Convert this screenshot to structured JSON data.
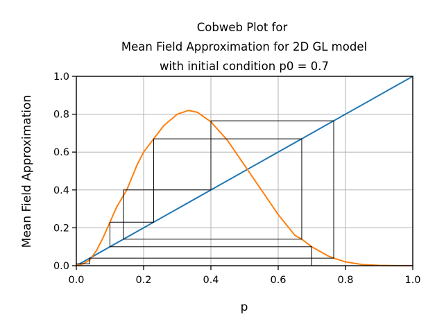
{
  "chart_data": {
    "type": "line",
    "title_lines": [
      "Cobweb Plot for",
      "Mean Field Approximation for 2D GL model",
      "with initial condition p0 = 0.7"
    ],
    "xlabel": "p",
    "ylabel": "Mean Field Approximation",
    "xlim": [
      0.0,
      1.0
    ],
    "ylim": [
      0.0,
      1.0
    ],
    "xticks": [
      "0.0",
      "0.2",
      "0.4",
      "0.6",
      "0.8",
      "1.0"
    ],
    "yticks": [
      "0.0",
      "0.2",
      "0.4",
      "0.6",
      "0.8",
      "1.0"
    ],
    "grid": true,
    "series": [
      {
        "color": "#1f77b4",
        "x": [
          0.0,
          1.0
        ],
        "y": [
          0.0,
          1.0
        ]
      },
      {
        "color": "#ff7f0e",
        "x": [
          0.0,
          0.02,
          0.04,
          0.06,
          0.08,
          0.1,
          0.12,
          0.15,
          0.18,
          0.2,
          0.23,
          0.26,
          0.3,
          0.333,
          0.36,
          0.4,
          0.45,
          0.5,
          0.55,
          0.6,
          0.65,
          0.67,
          0.7,
          0.75,
          0.765,
          0.8,
          0.85,
          0.9,
          0.95,
          1.0
        ],
        "y": [
          0.0,
          0.01,
          0.03,
          0.08,
          0.15,
          0.23,
          0.31,
          0.4,
          0.53,
          0.6,
          0.67,
          0.74,
          0.8,
          0.82,
          0.81,
          0.76,
          0.66,
          0.53,
          0.4,
          0.27,
          0.16,
          0.14,
          0.1,
          0.05,
          0.04,
          0.02,
          0.006,
          0.002,
          0.0005,
          0.0
        ]
      },
      {
        "color": "#000000",
        "x": [
          0.7,
          0.7,
          0.1,
          0.1,
          0.23,
          0.23,
          0.67,
          0.67,
          0.14,
          0.14,
          0.4,
          0.4,
          0.765,
          0.765,
          0.04,
          0.04,
          0.0,
          0.0
        ],
        "y": [
          0.0,
          0.1,
          0.1,
          0.23,
          0.23,
          0.67,
          0.67,
          0.14,
          0.14,
          0.4,
          0.4,
          0.765,
          0.765,
          0.04,
          0.04,
          0.01,
          0.01,
          0.0
        ]
      }
    ]
  }
}
